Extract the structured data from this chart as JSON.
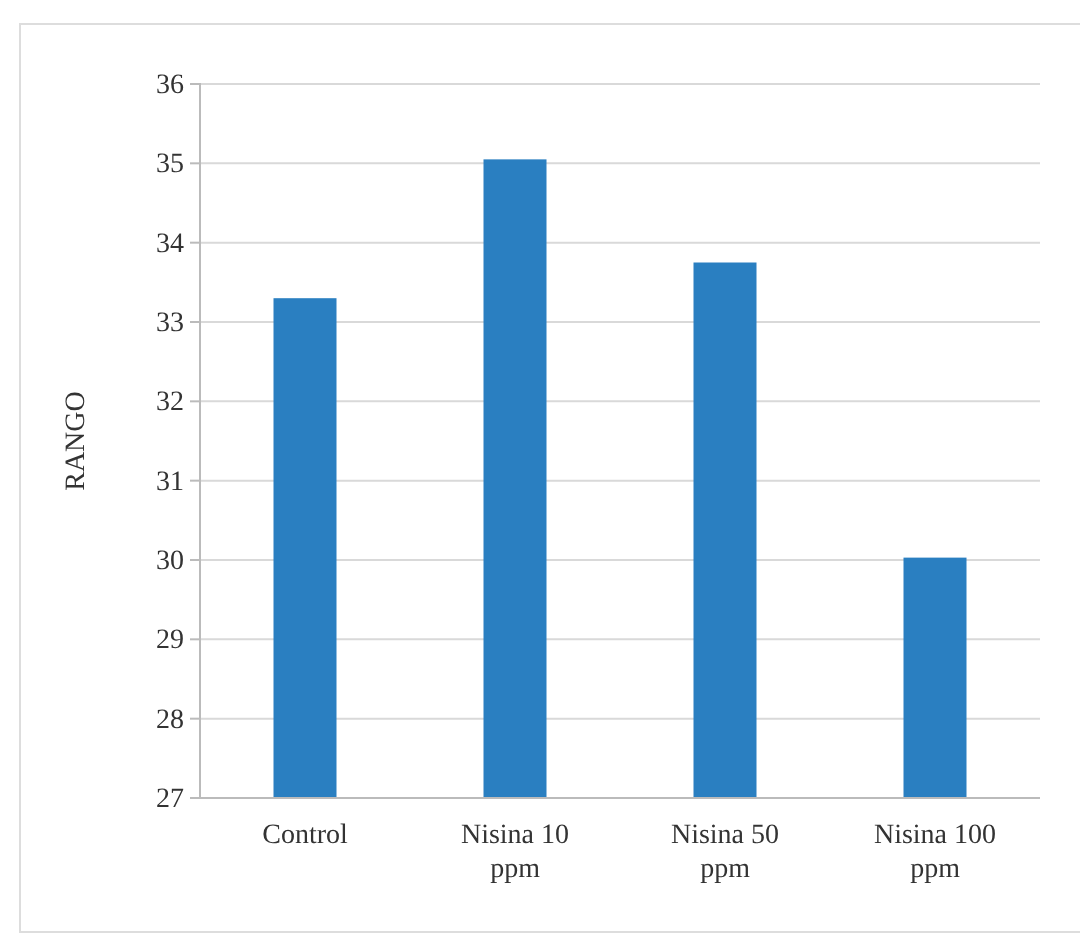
{
  "chart_data": {
    "type": "bar",
    "ylabel": "RANGO",
    "categories": [
      "Control",
      "Nisina 10 ppm",
      "Nisina 50 ppm",
      "Nisina 100 ppm"
    ],
    "values": [
      33.3,
      35.05,
      33.75,
      30.03
    ],
    "color": "#2a7fc1",
    "ylim": [
      27,
      36
    ],
    "yticks": [
      27,
      28,
      29,
      30,
      31,
      32,
      33,
      34,
      35,
      36
    ],
    "grid": "y"
  }
}
